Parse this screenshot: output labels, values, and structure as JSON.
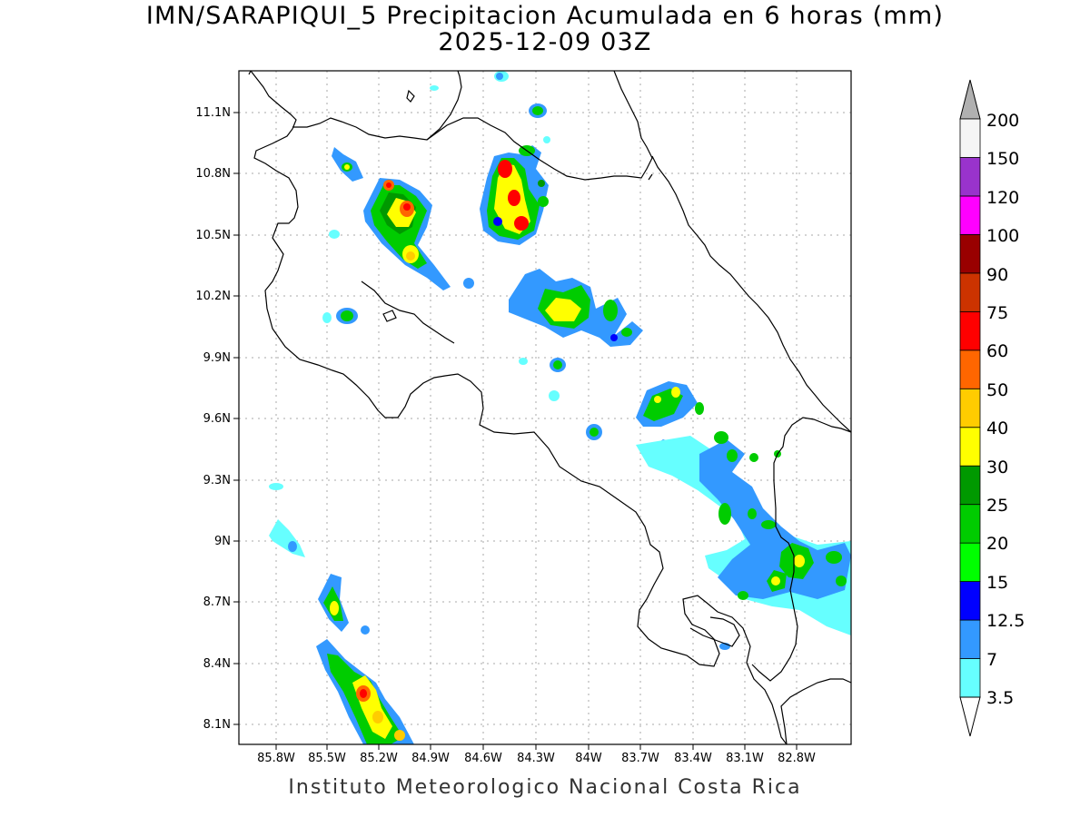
{
  "title": {
    "line1": "IMN/SARAPIQUI_5 Precipitacion Acumulada en 6 horas (mm)",
    "line2": "2025-12-09 03Z"
  },
  "footer": "Instituto Meteorologico Nacional Costa Rica",
  "axes": {
    "lat_labels": [
      "11.1N",
      "10.8N",
      "10.5N",
      "10.2N",
      "9.9N",
      "9.6N",
      "9.3N",
      "9N",
      "8.7N",
      "8.4N",
      "8.1N"
    ],
    "lon_labels": [
      "85.8W",
      "85.5W",
      "85.2W",
      "84.9W",
      "84.6W",
      "84.3W",
      "84W",
      "83.7W",
      "83.4W",
      "83.1W",
      "82.8W"
    ]
  },
  "colorbar": {
    "levels": [
      "3.5",
      "7",
      "12.5",
      "15",
      "20",
      "25",
      "30",
      "40",
      "50",
      "60",
      "75",
      "90",
      "100",
      "120",
      "150",
      "200"
    ],
    "colors": [
      "#66ffff",
      "#3399ff",
      "#0000ff",
      "#00ff00",
      "#00cc00",
      "#009900",
      "#ffff00",
      "#ffcc00",
      "#ff6600",
      "#ff0000",
      "#cc3300",
      "#990000",
      "#ff00ff",
      "#9933cc",
      "#f5f5f5"
    ],
    "over_color": "#b0b0b0",
    "under_color": "#ffffff"
  }
}
